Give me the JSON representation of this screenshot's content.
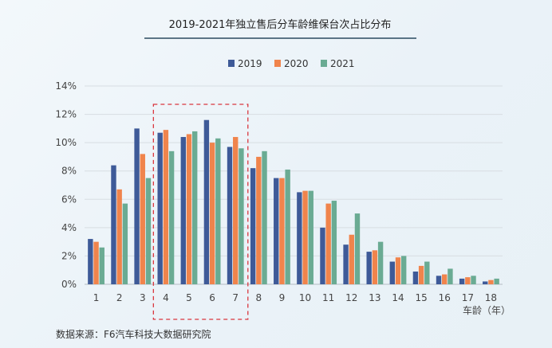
{
  "page": {
    "title": "2019-2021年独立售后分车龄维保台次占比分布",
    "source": "数据来源：F6汽车科技大数据研究院",
    "x_unit": "车龄（年）"
  },
  "chart_data": {
    "type": "bar",
    "title": "2019-2021年独立售后分车龄维保台次占比分布",
    "xlabel": "车龄（年）",
    "ylabel": "",
    "categories": [
      "1",
      "2",
      "3",
      "4",
      "5",
      "6",
      "7",
      "8",
      "9",
      "10",
      "11",
      "12",
      "13",
      "14",
      "15",
      "16",
      "17",
      "18"
    ],
    "ylim": [
      0,
      14
    ],
    "yticks": [
      "0%",
      "2%",
      "4%",
      "6%",
      "8%",
      "10%",
      "12%",
      "14%"
    ],
    "grid": true,
    "legend_position": "top",
    "highlight_categories": [
      "4",
      "5",
      "6",
      "7"
    ],
    "series": [
      {
        "name": "2019",
        "color": "#3e5a98",
        "values": [
          3.2,
          8.4,
          11.0,
          10.7,
          10.4,
          11.6,
          9.7,
          8.2,
          7.5,
          6.5,
          4.0,
          2.8,
          2.3,
          1.6,
          0.9,
          0.6,
          0.4,
          0.2
        ]
      },
      {
        "name": "2020",
        "color": "#f0844c",
        "values": [
          3.0,
          6.7,
          9.2,
          10.9,
          10.6,
          10.0,
          10.4,
          9.0,
          7.5,
          6.6,
          5.7,
          3.5,
          2.4,
          1.9,
          1.3,
          0.7,
          0.5,
          0.3
        ]
      },
      {
        "name": "2021",
        "color": "#6aab93",
        "values": [
          2.6,
          5.7,
          7.5,
          9.4,
          10.8,
          10.3,
          9.6,
          9.4,
          8.1,
          6.6,
          5.9,
          5.0,
          3.0,
          2.0,
          1.6,
          1.1,
          0.6,
          0.4
        ]
      }
    ]
  }
}
